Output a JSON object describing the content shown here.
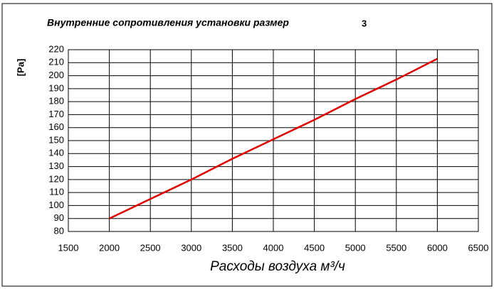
{
  "chart_data": {
    "type": "line",
    "title": "Внутренние сопротивления установки размер",
    "title_number": "3",
    "y_label": "[Pa]",
    "x_label": "Расходы воздуха м³/ч",
    "x": [
      2000,
      2500,
      3000,
      3500,
      4000,
      4500,
      5000,
      5500,
      6000
    ],
    "series": [
      {
        "color": "#e00000",
        "values": [
          90,
          105,
          120,
          136,
          151,
          166,
          182,
          197,
          213
        ]
      }
    ],
    "xlim": [
      1500,
      6500
    ],
    "xticks": [
      1500,
      2000,
      2500,
      3000,
      3500,
      4000,
      4500,
      5000,
      5500,
      6000,
      6500
    ],
    "ylim": [
      80,
      220
    ],
    "yticks": [
      80,
      90,
      100,
      110,
      120,
      130,
      140,
      150,
      160,
      170,
      180,
      190,
      200,
      210,
      220
    ],
    "grid": true
  }
}
